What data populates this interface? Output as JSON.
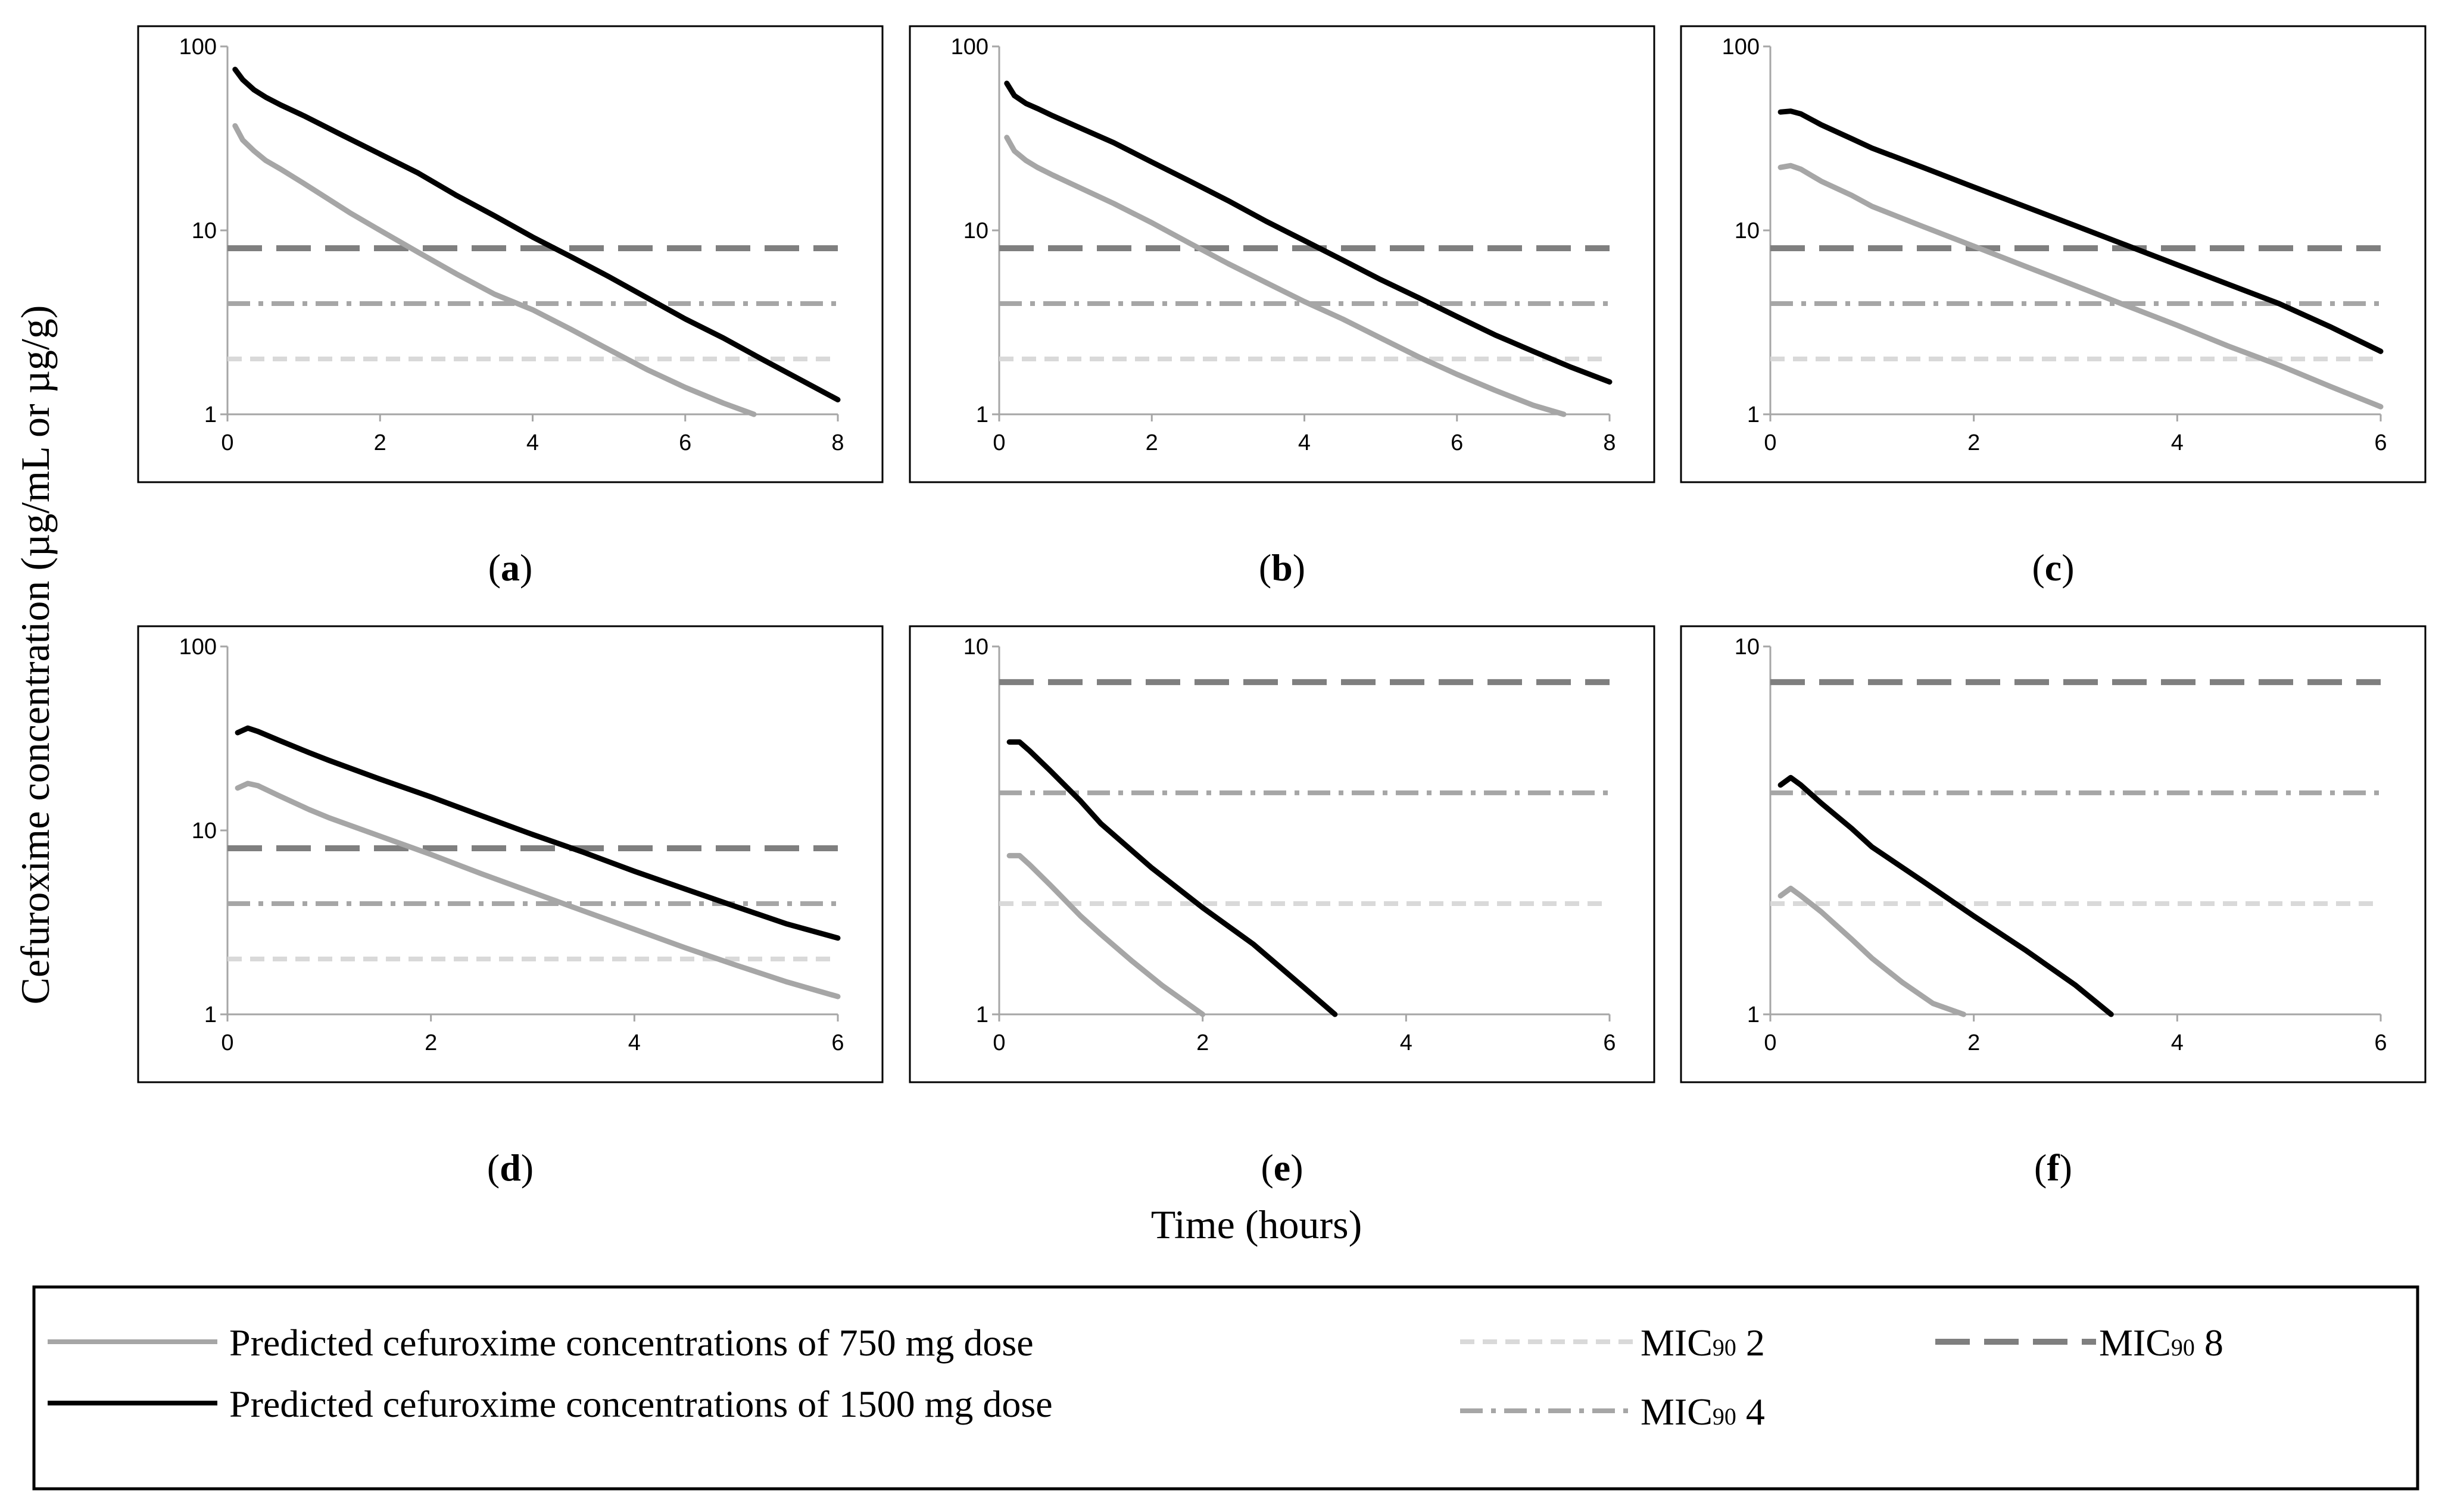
{
  "figure": {
    "ylabel": "Cefuroxime concentration (µg/mL or µg/g)",
    "xlabel": "Time (hours)"
  },
  "legend": {
    "items": [
      {
        "key": "dose750",
        "label": "Predicted cefuroxime concentrations of 750 mg dose",
        "color": "#a6a6a6",
        "style": "solid"
      },
      {
        "key": "dose1500",
        "label": "Predicted cefuroxime concentrations of 1500 mg dose",
        "color": "#000000",
        "style": "solid"
      },
      {
        "key": "mic2",
        "label_main": "MIC",
        "label_sub": "90",
        "label_value": " 2",
        "color": "#d9d9d9",
        "style": "dash"
      },
      {
        "key": "mic4",
        "label_main": "MIC",
        "label_sub": "90",
        "label_value": " 4",
        "color": "#a6a6a6",
        "style": "dashdot"
      },
      {
        "key": "mic8",
        "label_main": "MIC",
        "label_sub": "90",
        "label_value": " 8",
        "color": "#7f7f7f",
        "style": "longdash"
      }
    ]
  },
  "chart_data": [
    {
      "id": "a",
      "caption_open": "(",
      "caption_letter": "a",
      "caption_close": ")",
      "type": "line",
      "yscale": "log",
      "xlim": [
        0,
        8
      ],
      "xticks": [
        "0",
        "2",
        "4",
        "6",
        "8"
      ],
      "ylim": [
        1,
        100
      ],
      "yticks": [
        "1",
        "10",
        "100"
      ],
      "series": [
        {
          "name": "Predicted cefuroxime concentrations of 750 mg dose",
          "x": [
            0.1,
            0.2,
            0.35,
            0.5,
            0.7,
            1,
            1.3,
            1.6,
            2,
            2.5,
            3,
            3.5,
            4,
            4.5,
            5,
            5.5,
            6,
            6.5,
            6.9
          ],
          "y": [
            37,
            31,
            27,
            24,
            21.5,
            18,
            15,
            12.5,
            10,
            7.6,
            5.8,
            4.5,
            3.7,
            2.9,
            2.25,
            1.75,
            1.4,
            1.15,
            1.0
          ]
        },
        {
          "name": "Predicted cefuroxime concentrations of 1500 mg dose",
          "x": [
            0.1,
            0.2,
            0.35,
            0.5,
            0.7,
            1,
            1.5,
            2,
            2.5,
            3,
            3.5,
            4,
            4.5,
            5,
            5.5,
            6,
            6.5,
            7,
            7.5,
            8
          ],
          "y": [
            75,
            66,
            58,
            53,
            48,
            42,
            33,
            26,
            20.5,
            15.5,
            12,
            9.2,
            7.2,
            5.6,
            4.3,
            3.3,
            2.6,
            2.0,
            1.55,
            1.2
          ]
        }
      ],
      "mic": [
        2,
        4,
        8
      ],
      "mic_xmax": 8
    },
    {
      "id": "b",
      "caption_open": "(",
      "caption_letter": "b",
      "caption_close": ")",
      "type": "line",
      "yscale": "log",
      "xlim": [
        0,
        8
      ],
      "xticks": [
        "0",
        "2",
        "4",
        "6",
        "8"
      ],
      "ylim": [
        1,
        100
      ],
      "yticks": [
        "1",
        "10",
        "100"
      ],
      "series": [
        {
          "name": "Predicted cefuroxime concentrations of 750 mg dose",
          "x": [
            0.1,
            0.2,
            0.35,
            0.5,
            0.7,
            1,
            1.5,
            2,
            2.5,
            3,
            3.5,
            4,
            4.5,
            5,
            5.5,
            6,
            6.5,
            7,
            7.4
          ],
          "y": [
            32,
            27,
            24,
            22,
            20,
            17.5,
            14,
            11,
            8.5,
            6.6,
            5.2,
            4.1,
            3.3,
            2.6,
            2.05,
            1.65,
            1.35,
            1.12,
            1.0
          ]
        },
        {
          "name": "Predicted cefuroxime concentrations of 1500 mg dose",
          "x": [
            0.1,
            0.2,
            0.35,
            0.5,
            0.7,
            1,
            1.5,
            2,
            2.5,
            3,
            3.5,
            4,
            4.5,
            5,
            5.5,
            6,
            6.5,
            7,
            7.5,
            8
          ],
          "y": [
            63,
            54,
            49,
            46,
            42,
            37,
            30,
            23.5,
            18.5,
            14.5,
            11.2,
            8.8,
            6.9,
            5.4,
            4.3,
            3.4,
            2.7,
            2.2,
            1.8,
            1.5
          ]
        }
      ],
      "mic": [
        2,
        4,
        8
      ],
      "mic_xmax": 8
    },
    {
      "id": "c",
      "caption_open": "(",
      "caption_letter": "c",
      "caption_close": ")",
      "type": "line",
      "yscale": "log",
      "xlim": [
        0,
        6
      ],
      "xticks": [
        "0",
        "2",
        "4",
        "6"
      ],
      "ylim": [
        1,
        100
      ],
      "yticks": [
        "1",
        "10",
        "100"
      ],
      "series": [
        {
          "name": "Predicted cefuroxime concentrations of 750 mg dose",
          "x": [
            0.1,
            0.2,
            0.3,
            0.5,
            0.8,
            1,
            1.5,
            2,
            2.5,
            3,
            3.5,
            4,
            4.5,
            5,
            5.5,
            6
          ],
          "y": [
            22,
            22.5,
            21.5,
            18.5,
            15.5,
            13.5,
            10.5,
            8.2,
            6.4,
            5.0,
            3.9,
            3.05,
            2.35,
            1.85,
            1.42,
            1.1
          ]
        },
        {
          "name": "Predicted cefuroxime concentrations of 1500 mg dose",
          "x": [
            0.1,
            0.2,
            0.3,
            0.5,
            0.8,
            1,
            1.5,
            2,
            2.5,
            3,
            3.5,
            4,
            4.5,
            5,
            5.5,
            6
          ],
          "y": [
            44,
            44.5,
            43,
            37.5,
            31.5,
            28,
            22,
            17.2,
            13.5,
            10.6,
            8.3,
            6.5,
            5.1,
            4.0,
            3.0,
            2.2
          ]
        }
      ],
      "mic": [
        2,
        4,
        8
      ],
      "mic_xmax": 6
    },
    {
      "id": "d",
      "caption_open": "(",
      "caption_letter": "d",
      "caption_close": ")",
      "type": "line",
      "yscale": "log",
      "xlim": [
        0,
        6
      ],
      "xticks": [
        "0",
        "2",
        "4",
        "6"
      ],
      "ylim": [
        1,
        100
      ],
      "yticks": [
        "1",
        "10",
        "100"
      ],
      "series": [
        {
          "name": "Predicted cefuroxime concentrations of 750 mg dose",
          "x": [
            0.1,
            0.2,
            0.3,
            0.5,
            0.8,
            1,
            1.5,
            2,
            2.5,
            3,
            3.5,
            4,
            4.5,
            5,
            5.5,
            6
          ],
          "y": [
            17,
            18,
            17.5,
            15.5,
            13,
            11.7,
            9.3,
            7.4,
            5.8,
            4.6,
            3.65,
            2.9,
            2.3,
            1.85,
            1.5,
            1.25
          ]
        },
        {
          "name": "Predicted cefuroxime concentrations of 1500 mg dose",
          "x": [
            0.1,
            0.2,
            0.3,
            0.5,
            0.8,
            1,
            1.5,
            2,
            2.5,
            3,
            3.5,
            4,
            4.5,
            5,
            5.5,
            6
          ],
          "y": [
            34,
            36,
            34.5,
            31,
            26.5,
            24,
            19,
            15.2,
            12,
            9.5,
            7.6,
            6.0,
            4.8,
            3.85,
            3.1,
            2.6
          ]
        }
      ],
      "mic": [
        2,
        4,
        8
      ],
      "mic_xmax": 6
    },
    {
      "id": "e",
      "caption_open": "(",
      "caption_letter": "e",
      "caption_close": ")",
      "type": "line",
      "yscale": "log",
      "xlim": [
        0,
        6
      ],
      "xticks": [
        "0",
        "2",
        "4",
        "6"
      ],
      "ylim": [
        1,
        10
      ],
      "yticks": [
        "1",
        "10"
      ],
      "series": [
        {
          "name": "Predicted cefuroxime concentrations of 750 mg dose",
          "x": [
            0.1,
            0.2,
            0.3,
            0.5,
            0.8,
            1,
            1.3,
            1.6,
            2
          ],
          "y": [
            2.7,
            2.7,
            2.55,
            2.25,
            1.85,
            1.65,
            1.4,
            1.2,
            1.0
          ]
        },
        {
          "name": "Predicted cefuroxime concentrations of 1500 mg dose",
          "x": [
            0.1,
            0.2,
            0.3,
            0.5,
            0.8,
            1,
            1.5,
            2,
            2.5,
            3,
            3.3
          ],
          "y": [
            5.5,
            5.5,
            5.2,
            4.6,
            3.8,
            3.3,
            2.5,
            1.95,
            1.55,
            1.18,
            1.0
          ]
        }
      ],
      "mic": [
        2,
        4,
        8
      ],
      "mic_xmax": 6
    },
    {
      "id": "f",
      "caption_open": "(",
      "caption_letter": "f",
      "caption_close": ")",
      "type": "line",
      "yscale": "log",
      "xlim": [
        0,
        6
      ],
      "xticks": [
        "0",
        "2",
        "4",
        "6"
      ],
      "ylim": [
        1,
        10
      ],
      "yticks": [
        "1",
        "10"
      ],
      "series": [
        {
          "name": "Predicted cefuroxime concentrations of 750 mg dose",
          "x": [
            0.1,
            0.2,
            0.3,
            0.5,
            0.8,
            1,
            1.3,
            1.6,
            1.9
          ],
          "y": [
            2.1,
            2.2,
            2.1,
            1.9,
            1.6,
            1.42,
            1.22,
            1.07,
            1.0
          ]
        },
        {
          "name": "Predicted cefuroxime concentrations of 1500 mg dose",
          "x": [
            0.1,
            0.2,
            0.3,
            0.5,
            0.8,
            1,
            1.5,
            2,
            2.5,
            3,
            3.35
          ],
          "y": [
            4.2,
            4.4,
            4.2,
            3.75,
            3.2,
            2.85,
            2.3,
            1.85,
            1.5,
            1.2,
            1.0
          ]
        }
      ],
      "mic": [
        2,
        4,
        8
      ],
      "mic_xmax": 6
    }
  ]
}
